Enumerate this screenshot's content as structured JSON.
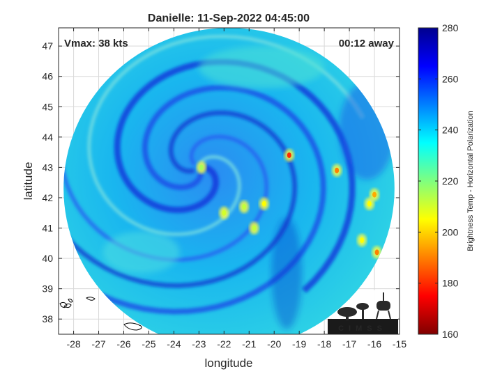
{
  "chart_data": {
    "type": "heatmap",
    "title": "Danielle: 11-Sep-2022 04:45:00",
    "annotations": {
      "left": "Vmax: 38 kts",
      "right": "00:12 away"
    },
    "xlabel": "longitude",
    "ylabel": "latitude",
    "xlim": [
      -28.6,
      -15
    ],
    "ylim": [
      37.5,
      47.6
    ],
    "xticks": [
      -28,
      -27,
      -26,
      -25,
      -24,
      -23,
      -22,
      -21,
      -20,
      -19,
      -18,
      -17,
      -16,
      -15
    ],
    "yticks": [
      38,
      39,
      40,
      41,
      42,
      43,
      44,
      45,
      46,
      47
    ],
    "grid": true,
    "colorbar": {
      "label": "Brightness Temp - Horizontal Polarization",
      "range": [
        160,
        280
      ],
      "ticks": [
        160,
        180,
        200,
        220,
        240,
        260,
        280
      ],
      "colormap": "jet"
    },
    "swath": {
      "center_lon": -21.8,
      "center_lat": 42.3,
      "radius_lon": 6.6,
      "radius_lat": 5.3
    },
    "storm_center": {
      "lon": -23.0,
      "lat": 43.0
    },
    "warm_spots": [
      {
        "lon": -19.4,
        "lat": 43.4,
        "value": 180
      },
      {
        "lon": -17.5,
        "lat": 42.9,
        "value": 190
      },
      {
        "lon": -16.0,
        "lat": 42.1,
        "value": 195
      },
      {
        "lon": -16.2,
        "lat": 41.8,
        "value": 205
      },
      {
        "lon": -15.9,
        "lat": 40.2,
        "value": 190
      },
      {
        "lon": -16.5,
        "lat": 40.6,
        "value": 205
      },
      {
        "lon": -20.4,
        "lat": 41.8,
        "value": 205
      },
      {
        "lon": -22.0,
        "lat": 41.5,
        "value": 210
      },
      {
        "lon": -22.9,
        "lat": 43.0,
        "value": 215
      },
      {
        "lon": -21.2,
        "lat": 41.7,
        "value": 212
      },
      {
        "lon": -20.8,
        "lat": 41.0,
        "value": 212
      }
    ]
  },
  "logo": {
    "text": "CIMSS"
  }
}
